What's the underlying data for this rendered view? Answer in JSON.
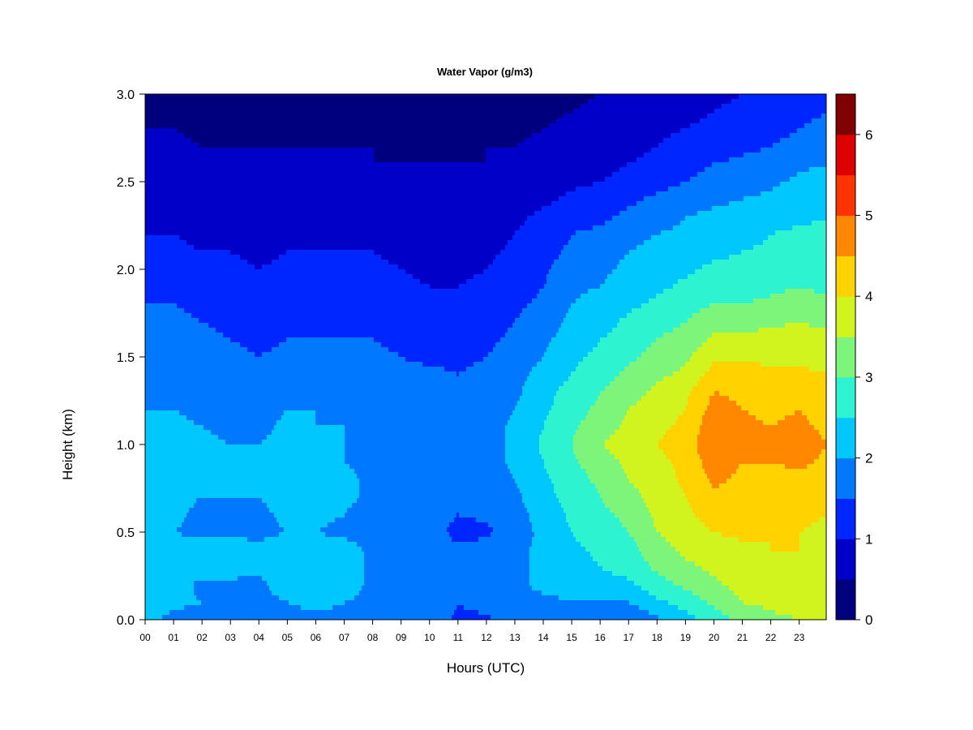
{
  "chart_data": {
    "type": "heatmap",
    "title": "Water Vapor (g/m3)",
    "xlabel": "Hours (UTC)",
    "ylabel": "Height (km)",
    "xlim": [
      0,
      23.95
    ],
    "ylim": [
      0.0,
      3.0
    ],
    "x_ticks": [
      "00",
      "01",
      "02",
      "03",
      "04",
      "05",
      "06",
      "07",
      "08",
      "09",
      "10",
      "11",
      "12",
      "13",
      "14",
      "15",
      "16",
      "17",
      "18",
      "19",
      "20",
      "21",
      "22",
      "23"
    ],
    "y_ticks": [
      "0.0",
      "0.5",
      "1.0",
      "1.5",
      "2.0",
      "2.5",
      "3.0"
    ],
    "colorbar": {
      "min": 0,
      "max": 6.5,
      "levels": [
        0,
        0.5,
        1,
        1.5,
        2,
        2.5,
        3,
        3.5,
        4,
        4.5,
        5,
        5.5,
        6,
        6.5
      ],
      "tick_labels": [
        "0",
        "1",
        "2",
        "3",
        "4",
        "5",
        "6"
      ],
      "colors": [
        "#00007f",
        "#0000c8",
        "#0026ff",
        "#0078ff",
        "#00c8ff",
        "#2ef3d0",
        "#7df57a",
        "#d2f41e",
        "#ffd200",
        "#ff8800",
        "#ff3300",
        "#dd0000",
        "#7f0000"
      ]
    },
    "x_hours": [
      0,
      1,
      2,
      3,
      4,
      5,
      6,
      7,
      8,
      9,
      10,
      11,
      12,
      13,
      14,
      15,
      16,
      17,
      18,
      19,
      20,
      21,
      22,
      23,
      24
    ],
    "heights_km": [
      0.0,
      0.1,
      0.2,
      0.3,
      0.4,
      0.5,
      0.6,
      0.7,
      0.8,
      0.9,
      1.0,
      1.1,
      1.2,
      1.3,
      1.4,
      1.5,
      1.6,
      1.7,
      1.8,
      1.9,
      2.0,
      2.1,
      2.2,
      2.3,
      2.4,
      2.5,
      2.6,
      2.7,
      2.8,
      2.9,
      3.0
    ],
    "water_vapor_gm3": [
      [
        2.1,
        2.2,
        2.3,
        2.2,
        2.2,
        2.2,
        2.1,
        2.1,
        2.1,
        2.1,
        2.1,
        2.1,
        2.0,
        2.0,
        1.9,
        1.8,
        1.7,
        1.6,
        1.5,
        1.3,
        1.2,
        1.1,
        1.0,
        0.9,
        0.9,
        0.8,
        0.7,
        0.6,
        0.5,
        0.4,
        0.3
      ],
      [
        1.9,
        2.1,
        2.2,
        2.2,
        2.2,
        2.0,
        2.1,
        2.1,
        2.1,
        2.0,
        2.1,
        2.1,
        2.0,
        1.9,
        1.9,
        1.8,
        1.7,
        1.6,
        1.5,
        1.3,
        1.2,
        1.1,
        1.0,
        0.9,
        0.8,
        0.7,
        0.7,
        0.6,
        0.5,
        0.4,
        0.3
      ],
      [
        1.8,
        2.0,
        1.9,
        2.3,
        2.2,
        1.9,
        1.9,
        2.0,
        2.0,
        2.0,
        2.1,
        2.0,
        1.9,
        1.8,
        1.8,
        1.7,
        1.6,
        1.5,
        1.4,
        1.3,
        1.1,
        1.0,
        0.9,
        0.8,
        0.7,
        0.6,
        0.6,
        0.5,
        0.4,
        0.3,
        0.2
      ],
      [
        1.8,
        1.9,
        1.9,
        2.2,
        2.2,
        1.9,
        1.9,
        2.0,
        2.0,
        2.0,
        2.0,
        1.9,
        1.9,
        1.8,
        1.7,
        1.6,
        1.5,
        1.4,
        1.3,
        1.2,
        1.1,
        1.0,
        0.9,
        0.8,
        0.7,
        0.6,
        0.5,
        0.5,
        0.4,
        0.3,
        0.2
      ],
      [
        1.8,
        1.9,
        1.9,
        2.1,
        2.1,
        1.9,
        1.9,
        2.0,
        2.0,
        2.0,
        2.0,
        1.9,
        1.8,
        1.7,
        1.6,
        1.5,
        1.4,
        1.3,
        1.2,
        1.1,
        1.0,
        0.9,
        0.9,
        0.8,
        0.7,
        0.6,
        0.5,
        0.5,
        0.4,
        0.3,
        0.2
      ],
      [
        1.9,
        2.0,
        2.2,
        2.3,
        2.2,
        2.0,
        2.1,
        2.2,
        2.2,
        2.1,
        2.1,
        2.1,
        2.0,
        1.9,
        1.8,
        1.6,
        1.5,
        1.4,
        1.3,
        1.2,
        1.1,
        1.0,
        0.9,
        0.8,
        0.7,
        0.6,
        0.5,
        0.5,
        0.4,
        0.3,
        0.2
      ],
      [
        1.9,
        2.1,
        2.2,
        2.3,
        2.2,
        2.0,
        2.1,
        2.1,
        2.1,
        2.1,
        2.1,
        2.0,
        2.0,
        1.9,
        1.8,
        1.6,
        1.5,
        1.4,
        1.3,
        1.2,
        1.1,
        1.0,
        0.9,
        0.8,
        0.7,
        0.6,
        0.5,
        0.5,
        0.4,
        0.3,
        0.2
      ],
      [
        1.9,
        2.0,
        2.2,
        2.2,
        2.2,
        1.9,
        2.0,
        2.1,
        2.1,
        2.0,
        2.0,
        2.0,
        1.9,
        1.8,
        1.7,
        1.6,
        1.5,
        1.4,
        1.3,
        1.2,
        1.1,
        1.0,
        0.9,
        0.8,
        0.7,
        0.6,
        0.5,
        0.5,
        0.4,
        0.3,
        0.2
      ],
      [
        1.8,
        1.9,
        1.9,
        1.9,
        1.9,
        1.8,
        1.8,
        1.9,
        1.9,
        1.9,
        1.9,
        1.9,
        1.8,
        1.8,
        1.7,
        1.6,
        1.5,
        1.4,
        1.3,
        1.2,
        1.1,
        1.0,
        0.9,
        0.8,
        0.7,
        0.6,
        0.5,
        0.5,
        0.4,
        0.3,
        0.2
      ],
      [
        1.8,
        1.9,
        1.9,
        1.9,
        1.9,
        1.8,
        1.8,
        1.8,
        1.8,
        1.8,
        1.9,
        1.8,
        1.8,
        1.7,
        1.6,
        1.5,
        1.4,
        1.3,
        1.2,
        1.1,
        1.0,
        0.9,
        0.8,
        0.7,
        0.6,
        0.6,
        0.5,
        0.4,
        0.4,
        0.3,
        0.2
      ],
      [
        1.8,
        1.9,
        1.9,
        1.9,
        1.9,
        1.8,
        1.8,
        1.8,
        1.8,
        1.8,
        1.8,
        1.8,
        1.7,
        1.7,
        1.6,
        1.4,
        1.3,
        1.2,
        1.1,
        1.0,
        0.9,
        0.9,
        0.8,
        0.7,
        0.6,
        0.5,
        0.5,
        0.4,
        0.4,
        0.3,
        0.2
      ],
      [
        1.4,
        1.5,
        1.6,
        1.7,
        1.6,
        1.3,
        1.5,
        1.6,
        1.6,
        1.6,
        1.6,
        1.6,
        1.6,
        1.5,
        1.5,
        1.4,
        1.3,
        1.2,
        1.1,
        1.0,
        0.9,
        0.8,
        0.8,
        0.7,
        0.6,
        0.5,
        0.5,
        0.4,
        0.4,
        0.3,
        0.2
      ],
      [
        1.4,
        1.7,
        1.8,
        1.8,
        1.7,
        1.4,
        1.6,
        1.7,
        1.7,
        1.8,
        1.8,
        1.8,
        1.8,
        1.7,
        1.6,
        1.5,
        1.4,
        1.3,
        1.2,
        1.1,
        1.0,
        0.9,
        0.8,
        0.7,
        0.6,
        0.6,
        0.5,
        0.5,
        0.4,
        0.3,
        0.2
      ],
      [
        1.8,
        1.9,
        1.9,
        1.9,
        1.9,
        1.8,
        1.8,
        1.9,
        2.0,
        2.1,
        2.1,
        2.1,
        2.0,
        1.9,
        1.8,
        1.7,
        1.6,
        1.5,
        1.4,
        1.3,
        1.2,
        1.1,
        1.0,
        0.9,
        0.8,
        0.7,
        0.6,
        0.5,
        0.4,
        0.3,
        0.2
      ],
      [
        1.8,
        1.9,
        2.1,
        2.1,
        2.1,
        2.1,
        2.2,
        2.3,
        2.4,
        2.5,
        2.6,
        2.5,
        2.4,
        2.3,
        2.2,
        2.0,
        1.9,
        1.8,
        1.6,
        1.5,
        1.4,
        1.3,
        1.2,
        1.1,
        0.9,
        0.8,
        0.7,
        0.6,
        0.5,
        0.4,
        0.3
      ],
      [
        1.8,
        2.0,
        2.2,
        2.3,
        2.4,
        2.5,
        2.6,
        2.7,
        2.8,
        2.9,
        3.0,
        2.9,
        2.8,
        2.7,
        2.5,
        2.4,
        2.2,
        2.1,
        2.0,
        1.9,
        1.8,
        1.6,
        1.5,
        1.3,
        1.1,
        0.9,
        0.8,
        0.7,
        0.6,
        0.5,
        0.4
      ],
      [
        1.7,
        2.0,
        2.3,
        2.5,
        2.6,
        2.8,
        2.9,
        3.0,
        3.1,
        3.3,
        3.5,
        3.3,
        3.1,
        3.0,
        2.8,
        2.6,
        2.5,
        2.3,
        2.2,
        2.0,
        1.9,
        1.8,
        1.6,
        1.4,
        1.2,
        1.0,
        0.9,
        0.8,
        0.7,
        0.6,
        0.5
      ],
      [
        1.6,
        2.0,
        2.4,
        2.7,
        2.8,
        3.0,
        3.1,
        3.3,
        3.5,
        3.6,
        3.7,
        3.6,
        3.5,
        3.3,
        3.1,
        2.9,
        2.7,
        2.6,
        2.4,
        2.2,
        2.1,
        2.0,
        1.8,
        1.6,
        1.4,
        1.1,
        1.0,
        0.9,
        0.8,
        0.7,
        0.6
      ],
      [
        1.9,
        2.4,
        2.8,
        3.1,
        3.3,
        3.5,
        3.6,
        3.7,
        3.8,
        3.9,
        4.0,
        3.9,
        3.8,
        3.6,
        3.4,
        3.2,
        3.0,
        2.8,
        2.6,
        2.4,
        2.3,
        2.2,
        2.0,
        1.8,
        1.6,
        1.3,
        1.1,
        1.0,
        0.9,
        0.8,
        0.7
      ],
      [
        2.3,
        2.7,
        3.1,
        3.4,
        3.6,
        3.8,
        3.9,
        4.0,
        4.1,
        4.1,
        4.2,
        4.1,
        4.0,
        3.9,
        3.6,
        3.4,
        3.2,
        3.0,
        2.8,
        2.6,
        2.4,
        2.3,
        2.1,
        2.0,
        1.8,
        1.5,
        1.3,
        1.2,
        1.0,
        0.9,
        0.8
      ],
      [
        2.7,
        3.1,
        3.4,
        3.6,
        3.8,
        4.0,
        4.2,
        4.4,
        4.6,
        4.8,
        5.0,
        4.9,
        4.7,
        4.5,
        4.2,
        3.9,
        3.6,
        3.3,
        3.0,
        2.8,
        2.6,
        2.4,
        2.2,
        2.1,
        1.9,
        1.7,
        1.5,
        1.3,
        1.1,
        1.0,
        0.9
      ],
      [
        3.2,
        3.5,
        3.7,
        3.8,
        3.9,
        4.1,
        4.2,
        4.3,
        4.4,
        4.5,
        4.7,
        4.6,
        4.5,
        4.4,
        4.2,
        3.9,
        3.6,
        3.3,
        3.0,
        2.8,
        2.6,
        2.5,
        2.3,
        2.2,
        2.0,
        1.8,
        1.6,
        1.4,
        1.2,
        1.1,
        1.0
      ],
      [
        3.4,
        3.6,
        3.8,
        3.9,
        4.0,
        4.0,
        4.1,
        4.2,
        4.3,
        4.5,
        4.6,
        4.5,
        4.4,
        4.3,
        4.1,
        3.9,
        3.7,
        3.4,
        3.1,
        2.9,
        2.7,
        2.6,
        2.5,
        2.3,
        2.1,
        1.9,
        1.7,
        1.5,
        1.3,
        1.2,
        1.1
      ],
      [
        3.5,
        3.7,
        3.9,
        4.0,
        4.0,
        4.0,
        4.1,
        4.2,
        4.4,
        4.6,
        4.7,
        4.6,
        4.5,
        4.3,
        4.1,
        3.9,
        3.7,
        3.5,
        3.2,
        3.0,
        2.8,
        2.7,
        2.6,
        2.4,
        2.3,
        2.1,
        1.9,
        1.7,
        1.5,
        1.4,
        1.2
      ],
      [
        3.5,
        3.7,
        3.8,
        3.9,
        3.9,
        3.9,
        4.0,
        4.1,
        4.3,
        4.4,
        4.5,
        4.4,
        4.3,
        4.1,
        4.0,
        3.8,
        3.6,
        3.4,
        3.1,
        2.9,
        2.8,
        2.7,
        2.6,
        2.5,
        2.4,
        2.2,
        2.0,
        1.8,
        1.6,
        1.5,
        1.3
      ]
    ]
  }
}
